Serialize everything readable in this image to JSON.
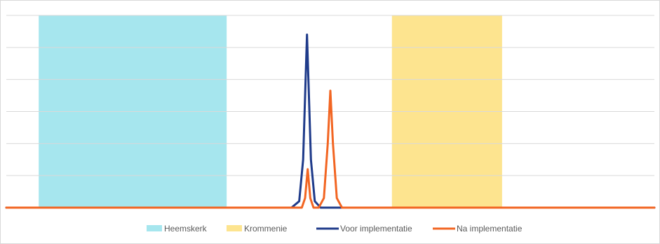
{
  "chart_data": {
    "type": "area",
    "title": "",
    "xlabel": "",
    "ylabel": "",
    "grid": true,
    "legend_position": "bottom",
    "xlim": [
      0,
      100
    ],
    "ylim": [
      0,
      6
    ],
    "y_gridlines": [
      0,
      1,
      2,
      3,
      4,
      5,
      6
    ],
    "bands": [
      {
        "name": "Heemskerk",
        "color": "#a6e6ee",
        "x_start": 5,
        "x_end": 34
      },
      {
        "name": "Krommenie",
        "color": "#fde48f",
        "x_start": 59.5,
        "x_end": 76.5
      }
    ],
    "series": [
      {
        "name": "Voor implementatie",
        "color": "#1f3b8a",
        "x": [
          0,
          44.0,
          45.2,
          45.8,
          46.4,
          47.0,
          47.6,
          48.5,
          52,
          100
        ],
        "y": [
          0,
          0,
          0.2,
          1.5,
          5.4,
          1.5,
          0.2,
          0,
          0,
          0
        ]
      },
      {
        "name": "Na implementatie",
        "color": "#f26522",
        "x": [
          0,
          38,
          45.6,
          46.1,
          46.5,
          46.9,
          47.4,
          48.2,
          49.0,
          49.6,
          50.0,
          50.4,
          51.0,
          51.8,
          100
        ],
        "y": [
          0,
          0,
          0,
          0.3,
          1.2,
          0.3,
          0,
          0,
          0.3,
          2.0,
          3.65,
          2.0,
          0.3,
          0,
          0
        ]
      }
    ]
  }
}
